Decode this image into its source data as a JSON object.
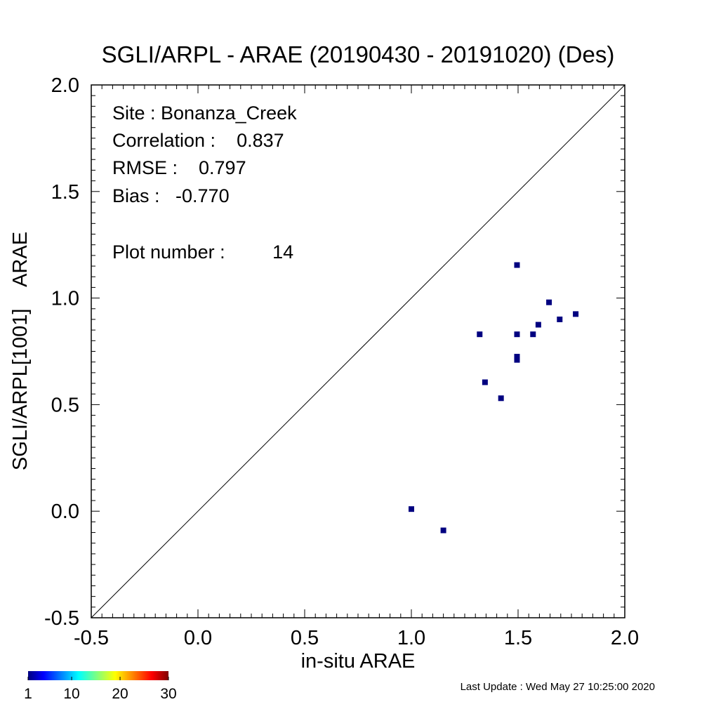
{
  "chart_data": {
    "type": "scatter",
    "title": "SGLI/ARPL - ARAE (20190430 - 20191020) (Des)",
    "xlabel": "in-situ ARAE",
    "ylabel": "SGLI/ARPL[1001]    ARAE",
    "xlim": [
      -0.5,
      2.0
    ],
    "ylim": [
      -0.5,
      2.0
    ],
    "x_ticks": [
      "-0.5",
      "0.0",
      "0.5",
      "1.0",
      "1.5",
      "2.0"
    ],
    "y_ticks": [
      "-0.5",
      "0.0",
      "0.5",
      "1.0",
      "1.5",
      "2.0"
    ],
    "one_to_one_line": true,
    "grid": false,
    "marker_color": "#000080",
    "points": [
      {
        "x": 1.0,
        "y": 0.01
      },
      {
        "x": 1.15,
        "y": -0.09
      },
      {
        "x": 1.32,
        "y": 0.83
      },
      {
        "x": 1.345,
        "y": 0.605
      },
      {
        "x": 1.42,
        "y": 0.53
      },
      {
        "x": 1.495,
        "y": 1.155
      },
      {
        "x": 1.495,
        "y": 0.83
      },
      {
        "x": 1.495,
        "y": 0.725
      },
      {
        "x": 1.495,
        "y": 0.71
      },
      {
        "x": 1.57,
        "y": 0.83
      },
      {
        "x": 1.595,
        "y": 0.875
      },
      {
        "x": 1.645,
        "y": 0.98
      },
      {
        "x": 1.695,
        "y": 0.9
      },
      {
        "x": 1.77,
        "y": 0.925
      }
    ],
    "stats": {
      "site": "Site : Bonanza_Creek",
      "correlation": "Correlation :    0.837",
      "rmse": "RMSE :    0.797",
      "bias": "Bias :   -0.770",
      "plot_number": "Plot number :         14"
    },
    "colorbar": {
      "labels": [
        "1",
        "10",
        "20",
        "30"
      ],
      "colormap": "jet"
    }
  },
  "footer": {
    "last_update": "Last Update : Wed May 27 10:25:00 2020"
  }
}
